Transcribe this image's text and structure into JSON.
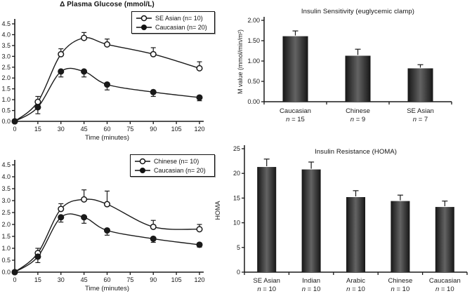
{
  "figure": {
    "background": "#ffffff",
    "ink_color": "#1a1a1a",
    "bar_gradient": [
      "#161616",
      "#636363",
      "#161616"
    ]
  },
  "chart_data": [
    {
      "id": "plasma-glucose-se-asian-vs-caucasian",
      "type": "line",
      "title": "Δ Plasma Glucose (mmol/L)",
      "xlabel": "Time (minutes)",
      "ylim": [
        0,
        4.5
      ],
      "yticks": [
        "0.0",
        "0.5",
        "1.0",
        "1.5",
        "2.0",
        "2.5",
        "3.0",
        "3.5",
        "4.0",
        "4.5"
      ],
      "xticks": [
        0,
        15,
        30,
        45,
        60,
        75,
        90,
        105,
        120
      ],
      "x": [
        0,
        15,
        30,
        45,
        60,
        90,
        120
      ],
      "legend_position": "top-right",
      "grid": false,
      "series": [
        {
          "name": "SE Asian (n= 10)",
          "marker": "open",
          "values": [
            0,
            0.9,
            3.1,
            3.85,
            3.55,
            3.1,
            2.45
          ],
          "errors": [
            0,
            0.25,
            0.25,
            0.25,
            0.25,
            0.3,
            0.3
          ],
          "error_direction": "up"
        },
        {
          "name": "Caucasian (n= 20)",
          "marker": "filled",
          "values": [
            0,
            0.65,
            2.3,
            2.3,
            1.7,
            1.35,
            1.1
          ],
          "errors": [
            0,
            0.3,
            0.25,
            0.25,
            0.25,
            0.2,
            0.15
          ],
          "error_direction": "down"
        }
      ]
    },
    {
      "id": "insulin-sensitivity",
      "type": "bar",
      "title": "Insulin Sensitivity (euglycemic clamp)",
      "ylabel": "M value (mmol/min/m²)",
      "ylim": [
        0,
        2
      ],
      "yticks": [
        "0.00",
        "0.50",
        "1.00",
        "1.50",
        "2.00"
      ],
      "categories": [
        "Caucasian",
        "Chinese",
        "SE Asian"
      ],
      "n_labels": [
        "n = 15",
        "n = 9",
        "n = 7"
      ],
      "values": [
        1.61,
        1.13,
        0.82
      ],
      "errors": [
        0.13,
        0.16,
        0.09
      ],
      "grid": false
    },
    {
      "id": "plasma-glucose-chinese-vs-caucasian",
      "type": "line",
      "title": "",
      "xlabel": "Time (minutes)",
      "ylim": [
        0,
        4.5
      ],
      "yticks": [
        "0.0",
        "0.5",
        "1.0",
        "1.5",
        "2.0",
        "2.5",
        "3.0",
        "3.5",
        "4.0",
        "4.5"
      ],
      "xticks": [
        0,
        15,
        30,
        45,
        60,
        75,
        90,
        105,
        120
      ],
      "x": [
        0,
        15,
        30,
        45,
        60,
        90,
        120
      ],
      "legend_position": "top-right",
      "grid": false,
      "series": [
        {
          "name": "Chinese (n= 10)",
          "marker": "open",
          "values": [
            0,
            0.8,
            2.65,
            3.05,
            2.85,
            1.9,
            1.8
          ],
          "errors": [
            0,
            0.2,
            0.22,
            0.4,
            0.55,
            0.27,
            0.2
          ],
          "error_direction": "up"
        },
        {
          "name": "Caucasian (n= 20)",
          "marker": "filled",
          "values": [
            0,
            0.65,
            2.3,
            2.3,
            1.75,
            1.4,
            1.15
          ],
          "errors": [
            0,
            0.25,
            0.2,
            0.25,
            0.2,
            0.15,
            0.1
          ],
          "error_direction": "down"
        }
      ]
    },
    {
      "id": "insulin-resistance-homa",
      "type": "bar",
      "title": "Insulin Resistance (HOMA)",
      "ylabel": "HOMA",
      "ylim": [
        0,
        25
      ],
      "yticks": [
        "0",
        "5",
        "10",
        "15",
        "20",
        "25"
      ],
      "categories": [
        "SE Asian",
        "Indian",
        "Arabic",
        "Chinese",
        "Caucasian"
      ],
      "n_labels": [
        "n = 10",
        "n = 10",
        "n = 10",
        "n = 10",
        "n = 10"
      ],
      "values": [
        21.3,
        20.8,
        15.2,
        14.4,
        13.2
      ],
      "errors": [
        1.6,
        1.5,
        1.3,
        1.2,
        1.2
      ],
      "grid": false
    }
  ]
}
